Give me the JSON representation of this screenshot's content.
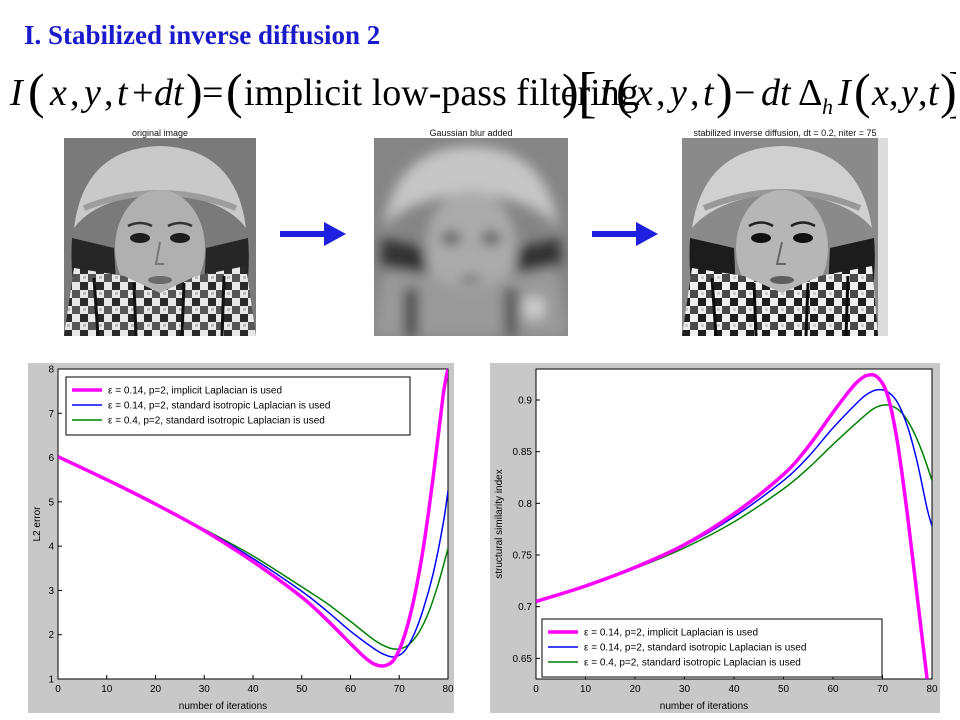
{
  "slide": {
    "title": "I. Stabilized inverse diffusion 2"
  },
  "formula": {
    "lhs": "I(x, y, t + dt) =",
    "filter": "(implicit low-pass filtering)",
    "rhs": "[ I(x, y, t) − dt Δ_h I(x, y, t) ]"
  },
  "images": [
    {
      "caption": "original image",
      "style": "sharp"
    },
    {
      "caption": "Gaussian blur added",
      "style": "blurred"
    },
    {
      "caption": "stabilized inverse diffusion, dt = 0.2,  niter = 75",
      "style": "restored"
    }
  ],
  "arrow_color": "#1f1fe0",
  "colors": {
    "implicit": "#ff00ff",
    "standard_014": "#0000ff",
    "standard_04": "#008000",
    "title": "#1a1acc",
    "panel_bg": "#c8c8c8"
  },
  "chart_data": [
    {
      "type": "line",
      "xlabel": "number of iterations",
      "ylabel": "L2 error",
      "xlim": [
        0,
        80
      ],
      "ylim": [
        1,
        8
      ],
      "xticks": [
        0,
        10,
        20,
        30,
        40,
        50,
        60,
        70,
        80
      ],
      "yticks": [
        1,
        2,
        3,
        4,
        5,
        6,
        7,
        8
      ],
      "legend_position": "top-left",
      "series": [
        {
          "name": "ε = 0.14, p=2, implicit Laplacian is used",
          "color": "#ff00ff",
          "width": 3.5,
          "x": [
            0,
            10,
            20,
            30,
            40,
            50,
            55,
            60,
            63,
            65,
            67,
            69,
            71,
            73,
            75,
            77,
            79,
            80
          ],
          "y": [
            6.02,
            5.5,
            4.95,
            4.35,
            3.65,
            2.85,
            2.35,
            1.8,
            1.48,
            1.33,
            1.3,
            1.45,
            1.95,
            2.8,
            4.0,
            5.6,
            7.4,
            8.0
          ]
        },
        {
          "name": "ε = 0.14, p=2, standard isotropic Laplacian is used",
          "color": "#0000ff",
          "width": 1.5,
          "x": [
            0,
            10,
            20,
            30,
            40,
            50,
            55,
            60,
            65,
            67,
            69,
            71,
            73,
            75,
            77,
            79,
            80
          ],
          "y": [
            6.02,
            5.5,
            4.95,
            4.37,
            3.72,
            2.98,
            2.55,
            2.08,
            1.67,
            1.55,
            1.5,
            1.62,
            2.0,
            2.6,
            3.4,
            4.5,
            5.25
          ]
        },
        {
          "name": "ε = 0.4, p=2, standard isotropic Laplacian is used",
          "color": "#008000",
          "width": 1.5,
          "x": [
            0,
            10,
            20,
            30,
            40,
            50,
            55,
            60,
            65,
            68,
            70,
            72,
            74,
            76,
            78,
            80
          ],
          "y": [
            6.02,
            5.5,
            4.95,
            4.38,
            3.78,
            3.08,
            2.72,
            2.3,
            1.87,
            1.7,
            1.68,
            1.78,
            2.05,
            2.5,
            3.15,
            3.95
          ]
        }
      ]
    },
    {
      "type": "line",
      "xlabel": "number of iterations",
      "ylabel": "structural similarity index",
      "xlim": [
        0,
        80
      ],
      "ylim": [
        0.63,
        0.93
      ],
      "xticks": [
        0,
        10,
        20,
        30,
        40,
        50,
        60,
        70,
        80
      ],
      "yticks": [
        0.65,
        0.7,
        0.75,
        0.8,
        0.85,
        0.9
      ],
      "legend_position": "bottom-left",
      "series": [
        {
          "name": "ε = 0.14, p=2, implicit Laplacian is used",
          "color": "#ff00ff",
          "width": 3.5,
          "x": [
            0,
            10,
            20,
            30,
            40,
            50,
            55,
            60,
            63,
            65,
            67,
            69,
            71,
            73,
            75,
            77,
            79
          ],
          "y": [
            0.705,
            0.72,
            0.738,
            0.76,
            0.79,
            0.828,
            0.855,
            0.888,
            0.907,
            0.918,
            0.924,
            0.922,
            0.905,
            0.86,
            0.79,
            0.71,
            0.63
          ]
        },
        {
          "name": "ε = 0.14, p=2, standard isotropic Laplacian is used",
          "color": "#0000ff",
          "width": 1.5,
          "x": [
            0,
            10,
            20,
            30,
            40,
            50,
            55,
            60,
            65,
            67,
            69,
            71,
            73,
            75,
            77,
            79,
            80
          ],
          "y": [
            0.705,
            0.72,
            0.738,
            0.759,
            0.787,
            0.822,
            0.845,
            0.873,
            0.898,
            0.906,
            0.91,
            0.908,
            0.898,
            0.875,
            0.84,
            0.795,
            0.778
          ]
        },
        {
          "name": "ε = 0.4, p=2, standard isotropic Laplacian is used",
          "color": "#008000",
          "width": 1.5,
          "x": [
            0,
            10,
            20,
            30,
            40,
            50,
            55,
            60,
            65,
            68,
            70,
            72,
            74,
            76,
            78,
            80
          ],
          "y": [
            0.705,
            0.72,
            0.737,
            0.757,
            0.782,
            0.814,
            0.834,
            0.857,
            0.879,
            0.891,
            0.895,
            0.894,
            0.887,
            0.872,
            0.85,
            0.822
          ]
        }
      ]
    }
  ]
}
